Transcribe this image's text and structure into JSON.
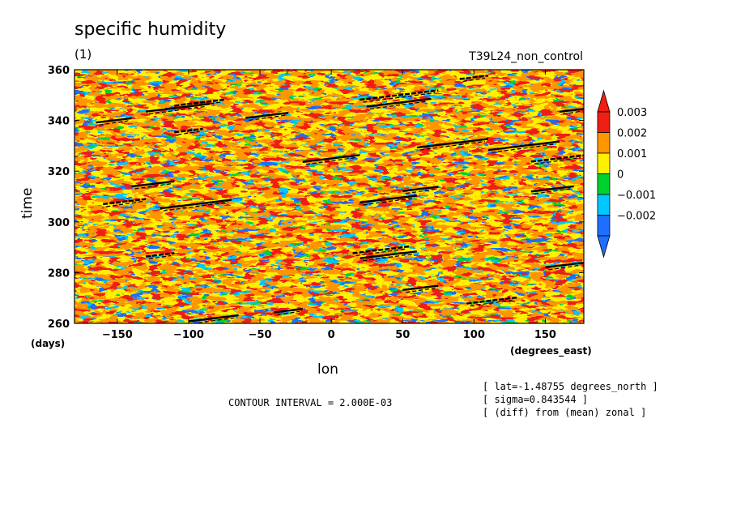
{
  "header": {
    "title": "specific humidity",
    "subtitle": "(1)",
    "run_name": "T39L24_non_control"
  },
  "notes": {
    "contour_interval": "CONTOUR INTERVAL = 2.000E-03",
    "lat": "[ lat=-1.48755 degrees_north ]",
    "sigma": "[ sigma=0.843544 ]",
    "diff": "[ (diff) from (mean) zonal ]"
  },
  "chart_data": {
    "type": "heatmap",
    "title": "specific humidity",
    "xlabel": "lon",
    "ylabel": "time",
    "x_unit": "(degrees_east)",
    "y_unit": "(days)",
    "xlim": [
      -180,
      177
    ],
    "ylim": [
      260,
      360
    ],
    "x_ticks": [
      -150,
      -100,
      -50,
      0,
      50,
      100,
      150
    ],
    "y_ticks": [
      260,
      280,
      300,
      320,
      340,
      360
    ],
    "x_tick_labels": [
      "-150",
      "-100",
      "-50",
      "0",
      "50",
      "100",
      "150"
    ],
    "y_tick_labels": [
      "260",
      "280",
      "300",
      "320",
      "340",
      "360"
    ],
    "colorbar": {
      "levels": [
        -0.002,
        -0.001,
        0,
        0.001,
        0.002,
        0.003
      ],
      "labels": [
        "-0.002",
        "-0.001",
        "0",
        "0.001",
        "0.002",
        "0.003"
      ],
      "colors": [
        "#1e6eff",
        "#00c8ff",
        "#00d22d",
        "#fff000",
        "#ff9600",
        "#f01e14"
      ],
      "extend": "both"
    },
    "contour_lines_color": "#000000",
    "contour_features": [
      {
        "x0": -110,
        "x1": -75,
        "y": 347
      },
      {
        "x0": -130,
        "x1": -85,
        "y": 345
      },
      {
        "x0": -60,
        "x1": -30,
        "y": 342
      },
      {
        "x0": 20,
        "x1": 75,
        "y": 350
      },
      {
        "x0": 25,
        "x1": 70,
        "y": 347
      },
      {
        "x0": 110,
        "x1": 160,
        "y": 330
      },
      {
        "x0": 140,
        "x1": 177,
        "y": 325
      },
      {
        "x0": 60,
        "x1": 110,
        "y": 331
      },
      {
        "x0": -165,
        "x1": -140,
        "y": 340
      },
      {
        "x0": -110,
        "x1": -90,
        "y": 336
      },
      {
        "x0": 50,
        "x1": 75,
        "y": 313
      },
      {
        "x0": 20,
        "x1": 60,
        "y": 309
      },
      {
        "x0": -160,
        "x1": -130,
        "y": 308
      },
      {
        "x0": -120,
        "x1": -70,
        "y": 307
      },
      {
        "x0": -140,
        "x1": -110,
        "y": 315
      },
      {
        "x0": 15,
        "x1": 55,
        "y": 289
      },
      {
        "x0": 20,
        "x1": 60,
        "y": 287
      },
      {
        "x0": 50,
        "x1": 75,
        "y": 274
      },
      {
        "x0": 95,
        "x1": 130,
        "y": 269
      },
      {
        "x0": -40,
        "x1": -20,
        "y": 265
      },
      {
        "x0": -100,
        "x1": -65,
        "y": 262
      },
      {
        "x0": -130,
        "x1": -110,
        "y": 287
      },
      {
        "x0": 140,
        "x1": 170,
        "y": 313
      },
      {
        "x0": 160,
        "x1": 177,
        "y": 344
      },
      {
        "x0": 90,
        "x1": 110,
        "y": 357
      },
      {
        "x0": -20,
        "x1": 20,
        "y": 325
      },
      {
        "x0": 150,
        "x1": 177,
        "y": 283
      }
    ]
  }
}
